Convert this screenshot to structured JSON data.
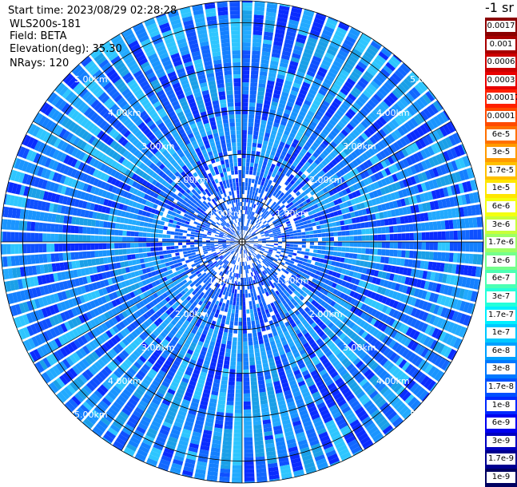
{
  "header": {
    "start_time": "Start time: 2023/08/29 02:28:28",
    "instrument": "WLS200s-181",
    "field": "Field: BETA",
    "elevation": "Elevation(deg): 35.30",
    "nrays": "NRays: 120"
  },
  "colorbar": {
    "unit": "-1 sr",
    "entries": [
      {
        "label": "0.0017",
        "color": "#8b0000"
      },
      {
        "label": "0.001",
        "color": "#a80000"
      },
      {
        "label": "0.0006",
        "color": "#cc0000"
      },
      {
        "label": "0.0003",
        "color": "#e80000"
      },
      {
        "label": "0.00017",
        "color": "#ff2000"
      },
      {
        "label": "0.0001",
        "color": "#ff4a00"
      },
      {
        "label": "6e-5",
        "color": "#ff7000"
      },
      {
        "label": "3e-5",
        "color": "#ff9a00"
      },
      {
        "label": "1.7e-5",
        "color": "#ffc000"
      },
      {
        "label": "1e-5",
        "color": "#ffe600"
      },
      {
        "label": "6e-6",
        "color": "#f4ff10"
      },
      {
        "label": "3e-6",
        "color": "#c8ff3a"
      },
      {
        "label": "1.7e-6",
        "color": "#9dff64"
      },
      {
        "label": "1e-6",
        "color": "#74ff8c"
      },
      {
        "label": "6e-7",
        "color": "#4cffb4"
      },
      {
        "label": "3e-7",
        "color": "#24ffda"
      },
      {
        "label": "1.7e-7",
        "color": "#00f0ff"
      },
      {
        "label": "1e-7",
        "color": "#00c8ff"
      },
      {
        "label": "6e-8",
        "color": "#00a0ff"
      },
      {
        "label": "3e-8",
        "color": "#0078ff"
      },
      {
        "label": "1.7e-8",
        "color": "#0050ff"
      },
      {
        "label": "1e-8",
        "color": "#0028ff"
      },
      {
        "label": "6e-9",
        "color": "#0000f0"
      },
      {
        "label": "3e-9",
        "color": "#0000c0"
      },
      {
        "label": "1.7e-9",
        "color": "#000090"
      },
      {
        "label": "1e-9",
        "color": "#000060"
      }
    ]
  },
  "range_labels": {
    "r1": "1.00km",
    "r2": "2.00km",
    "r3": "3.00km",
    "r4": "4.00km",
    "r5": "5.00km"
  },
  "map": {
    "rays": 120,
    "range_rings_km": [
      1,
      2,
      3,
      4,
      5
    ],
    "max_range_km": 5.5,
    "palette": [
      "#0a2cff",
      "#0f50ff",
      "#1268ff",
      "#1480ff",
      "#1a95ff",
      "#22aaff",
      "#2ec6ff",
      "#1aa0e8"
    ],
    "background": "#ffffff",
    "grid_color": "#000000",
    "gate_edge_color": "#ffffff"
  }
}
